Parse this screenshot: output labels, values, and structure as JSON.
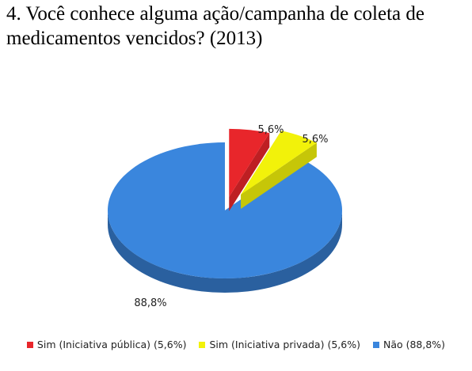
{
  "chart_data": {
    "type": "pie",
    "title": "4. Você conhece alguma ação/campanha de coleta de medicamentos vencidos? (2013)",
    "categories": [
      "Sim (Iniciativa pública) (5,6%)",
      "Sim (Iniciativa privada) (5,6%)",
      "Não (88,8%)"
    ],
    "values": [
      5.6,
      5.6,
      88.8
    ],
    "data_labels": [
      "5,6%",
      "5,6%",
      "88,8%"
    ],
    "colors": [
      "#e8262b",
      "#f2f20a",
      "#3a86dd"
    ],
    "legend_position": "bottom",
    "style": "3d-exploded"
  }
}
